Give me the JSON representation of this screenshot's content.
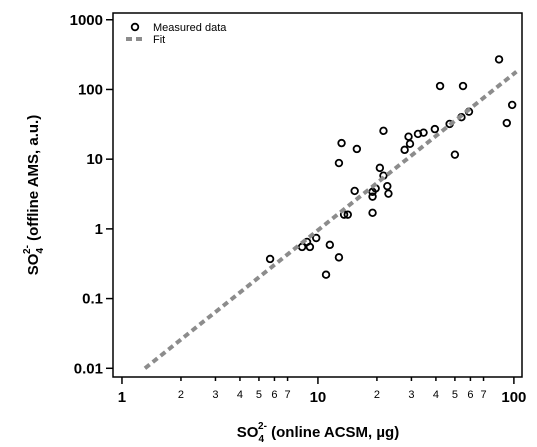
{
  "chart_data": {
    "type": "scatter",
    "x_label": {
      "text": "SO",
      "sub": "4",
      "sup": "2-",
      "rest": " (online ACSM, µg)"
    },
    "y_label": {
      "text": "SO",
      "sub": "4",
      "sup": "2-",
      "rest": " (offline AMS, a.u.)"
    },
    "x_scale": "log",
    "y_scale": "log",
    "xlim": [
      0.9,
      110
    ],
    "ylim": [
      0.0075,
      1250
    ],
    "xticks": [
      1,
      2,
      3,
      4,
      5,
      6,
      7,
      10,
      {
        "value": 20,
        "label": "2"
      },
      {
        "value": 30,
        "label": "3"
      },
      {
        "value": 40,
        "label": "4"
      },
      {
        "value": 50,
        "label": "5"
      },
      {
        "value": 60,
        "label": "6"
      },
      {
        "value": 70,
        "label": "7"
      },
      100
    ],
    "yticks": [
      0.01,
      0.1,
      1,
      10,
      100,
      1000
    ],
    "legend": "upper left",
    "series": [
      {
        "name": "Measured data",
        "color": "#000000",
        "marker": "open-circle",
        "x": [
          5.7,
          8.3,
          8.8,
          9.1,
          9.8,
          11.5,
          11,
          12.8,
          13.6,
          14.2,
          15.4,
          12.8,
          13.2,
          15.8,
          19,
          19,
          19.7,
          19,
          20.7,
          21.6,
          22.6,
          22.9,
          21.6,
          27.7,
          29.5,
          29,
          32.4,
          34.6,
          39.5,
          42,
          47,
          50,
          54,
          55,
          59,
          84,
          92,
          98
        ],
        "values": [
          0.37,
          0.55,
          0.65,
          0.55,
          0.74,
          0.59,
          0.22,
          0.39,
          1.6,
          1.6,
          3.5,
          8.8,
          17,
          14,
          3.4,
          2.9,
          3.8,
          1.7,
          7.5,
          5.8,
          4.1,
          3.2,
          25.5,
          13.6,
          16.6,
          21,
          23,
          24,
          27,
          112,
          32,
          11.6,
          40,
          112,
          48,
          270,
          33,
          60
        ]
      },
      {
        "name": "Fit",
        "color": "#8c8c8c",
        "marker": "dashed-line",
        "x": [
          1.31,
          103
        ],
        "values": [
          0.01,
          180
        ]
      }
    ]
  }
}
